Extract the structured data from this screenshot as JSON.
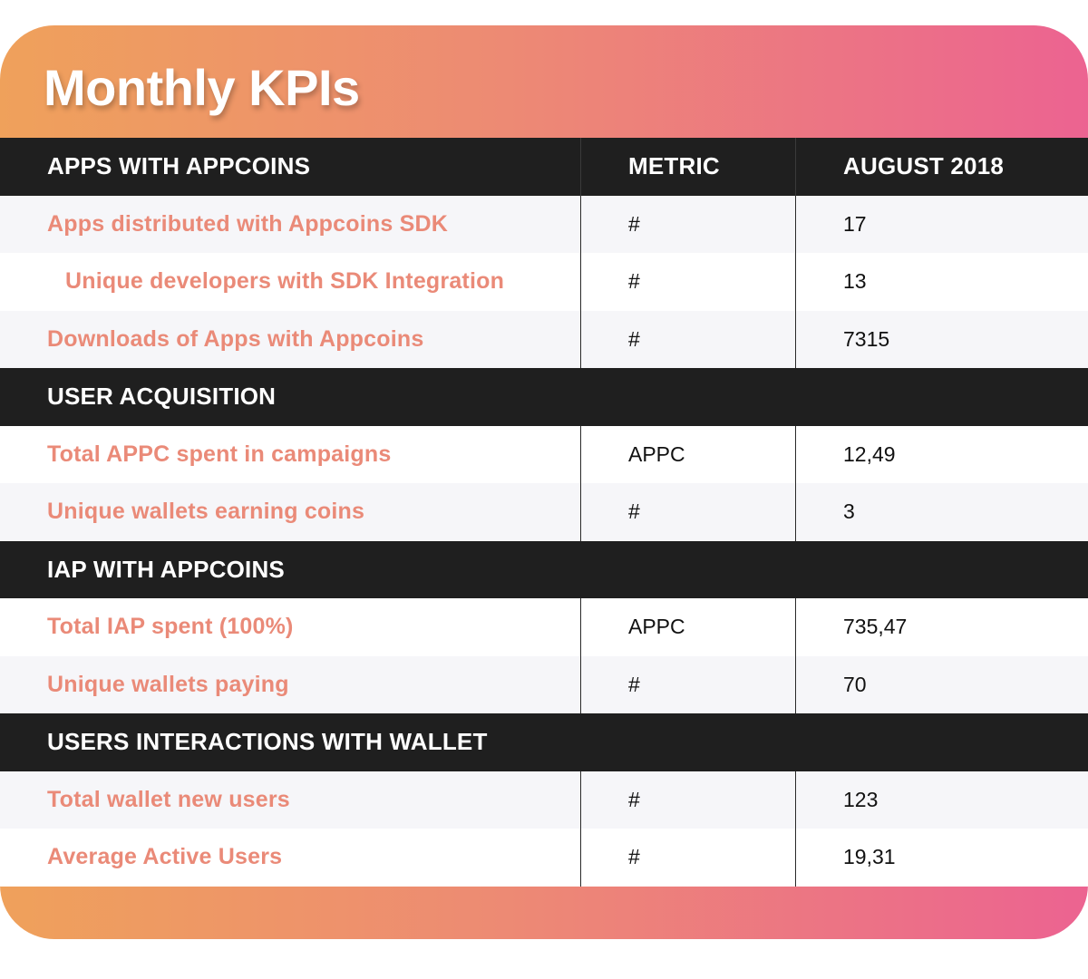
{
  "title": "Monthly KPIs",
  "sections": [
    {
      "header": [
        "APPS WITH APPCOINS",
        "METRIC",
        "AUGUST 2018"
      ],
      "rows": [
        {
          "label": "Apps distributed with Appcoins SDK",
          "metric": "#",
          "value": "17"
        },
        {
          "label": "Unique developers with SDK Integration",
          "metric": "#",
          "value": "13"
        },
        {
          "label": "Downloads of Apps with Appcoins",
          "metric": "#",
          "value": "7315"
        }
      ]
    },
    {
      "header": [
        "USER ACQUISITION"
      ],
      "rows": [
        {
          "label": "Total APPC spent in campaigns",
          "metric": "APPC",
          "value": "12,49"
        },
        {
          "label": "Unique wallets earning coins",
          "metric": "#",
          "value": "3"
        }
      ]
    },
    {
      "header": [
        "IAP WITH APPCOINS"
      ],
      "rows": [
        {
          "label": "Total IAP spent (100%)",
          "metric": "APPC",
          "value": "735,47"
        },
        {
          "label": "Unique wallets paying",
          "metric": "#",
          "value": "70"
        }
      ]
    },
    {
      "header": [
        "USERS INTERACTIONS WITH WALLET"
      ],
      "rows": [
        {
          "label": "Total wallet new users",
          "metric": "#",
          "value": "123"
        },
        {
          "label": "Average Active Users",
          "metric": "#",
          "value": "19,31"
        }
      ]
    }
  ],
  "colors": {
    "gradient_start": "#efa15b",
    "gradient_end": "#ec6391",
    "header_bg": "#1f1f1f",
    "label_text": "#ea8a78"
  }
}
